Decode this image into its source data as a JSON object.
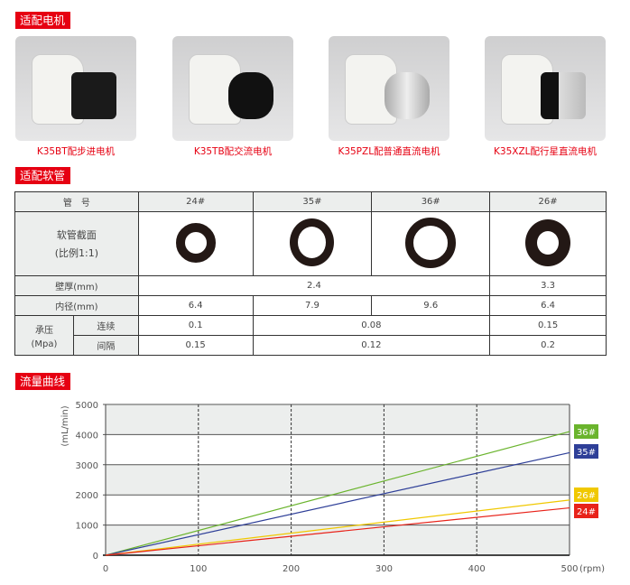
{
  "sections": {
    "motors": "适配电机",
    "tubes": "适配软管",
    "flow": "流量曲线"
  },
  "motors": [
    {
      "caption": "K35BT配步进电机",
      "color": "#1a1a1a"
    },
    {
      "caption": "K35TB配交流电机",
      "color": "#111111"
    },
    {
      "caption": "K35PZL配普通直流电机",
      "color": "#c9cbcd"
    },
    {
      "caption": "K35XZL配行星直流电机",
      "color": "#d0d2d4"
    }
  ],
  "table": {
    "header_label": "管　号",
    "tubes": [
      "24#",
      "35#",
      "36#",
      "26#"
    ],
    "section_label": "软管截面",
    "section_scale": "(比例1:1)",
    "wall_label": "壁厚(mm)",
    "wall_shared": "2.4",
    "wall_26": "3.3",
    "inner_label": "内径(mm)",
    "inner": [
      "6.4",
      "7.9",
      "9.6",
      "6.4"
    ],
    "pressure_label": "承压",
    "pressure_unit": "(Mpa)",
    "continuous_label": "连续",
    "continuous": [
      "0.1",
      "0.08",
      "0.15"
    ],
    "interval_label": "间隔",
    "interval": [
      "0.15",
      "0.12",
      "0.2"
    ]
  },
  "chart_data": {
    "type": "line",
    "xlabel": "(rpm)",
    "ylabel": "(mL/min)",
    "xlim": [
      0,
      500
    ],
    "ylim": [
      0,
      5000
    ],
    "xticks": [
      "0",
      "100",
      "200",
      "300",
      "400",
      "500"
    ],
    "yticks": [
      "0",
      "1000",
      "2000",
      "3000",
      "4000",
      "5000"
    ],
    "grid": true,
    "legend": "right",
    "series": [
      {
        "name": "36#",
        "color": "#6ab42d",
        "x": [
          0,
          500
        ],
        "y": [
          0,
          4100
        ]
      },
      {
        "name": "35#",
        "color": "#2e3f98",
        "x": [
          0,
          500
        ],
        "y": [
          0,
          3400
        ]
      },
      {
        "name": "26#",
        "color": "#f0c800",
        "x": [
          0,
          500
        ],
        "y": [
          0,
          1830
        ]
      },
      {
        "name": "24#",
        "color": "#e8231a",
        "x": [
          0,
          500
        ],
        "y": [
          0,
          1570
        ]
      }
    ]
  }
}
